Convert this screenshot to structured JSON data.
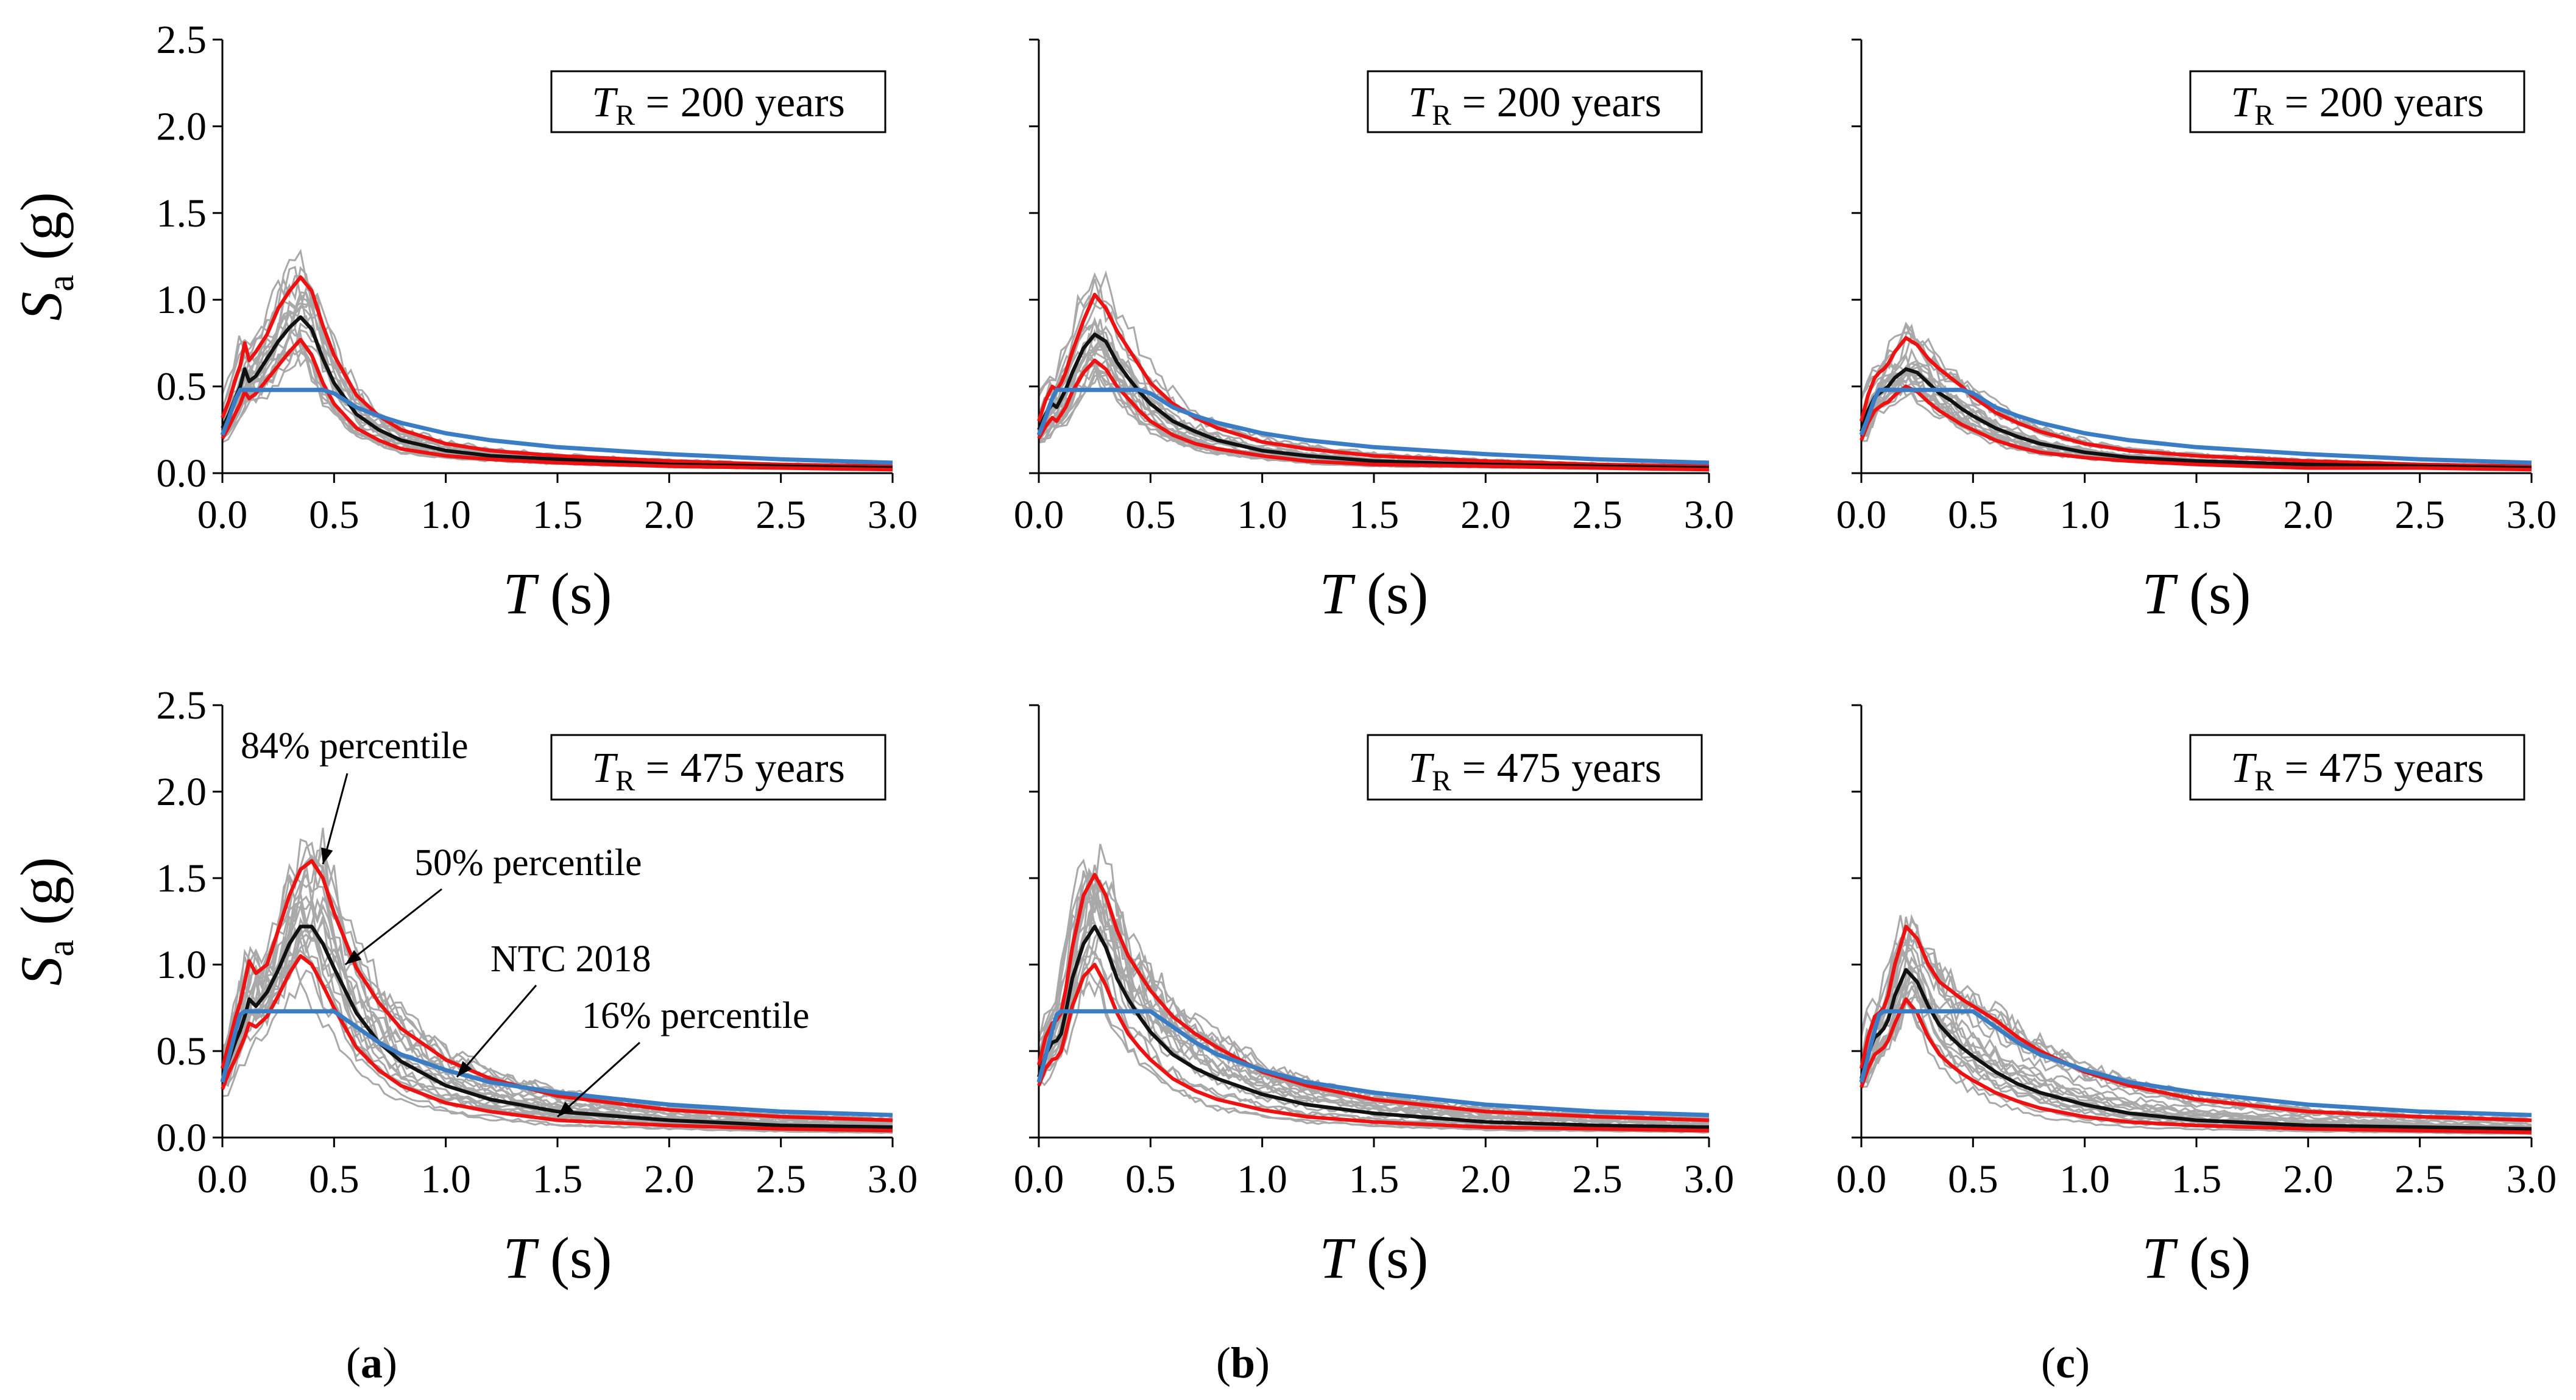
{
  "chart_data": [
    {
      "type": "line",
      "panel": "top-a",
      "legend": {
        "T": "T",
        "sub": "R",
        "text": " = 200 years"
      },
      "xticks": [
        "0.0",
        "0.5",
        "1.0",
        "1.5",
        "2.0",
        "2.5",
        "3.0"
      ],
      "yticks": [
        "0.0",
        "0.5",
        "1.0",
        "1.5",
        "2.0",
        "2.5"
      ],
      "xlim": [
        0,
        3
      ],
      "ylim": [
        0,
        2.5
      ],
      "xlabel": {
        "main": "T",
        "unit": " (s)"
      },
      "ylabel": {
        "main": "S",
        "sub": "a",
        "unit": " (g)"
      },
      "x": [
        0,
        0.03,
        0.06,
        0.08,
        0.1,
        0.12,
        0.15,
        0.2,
        0.25,
        0.3,
        0.35,
        0.4,
        0.45,
        0.5,
        0.6,
        0.7,
        0.8,
        1.0,
        1.2,
        1.5,
        2.0,
        2.5,
        3.0
      ],
      "series": [
        {
          "name": "84% percentile",
          "color": "#ee1111",
          "values": [
            0.32,
            0.42,
            0.55,
            0.62,
            0.75,
            0.65,
            0.7,
            0.8,
            0.95,
            1.05,
            1.13,
            1.05,
            0.85,
            0.68,
            0.45,
            0.33,
            0.25,
            0.17,
            0.13,
            0.1,
            0.07,
            0.05,
            0.04
          ]
        },
        {
          "name": "50% percentile",
          "color": "#111111",
          "values": [
            0.26,
            0.34,
            0.44,
            0.5,
            0.6,
            0.53,
            0.56,
            0.66,
            0.76,
            0.84,
            0.9,
            0.83,
            0.66,
            0.52,
            0.34,
            0.25,
            0.19,
            0.13,
            0.1,
            0.08,
            0.05,
            0.04,
            0.03
          ]
        },
        {
          "name": "16% percentile",
          "color": "#ee1111",
          "values": [
            0.2,
            0.27,
            0.35,
            0.4,
            0.47,
            0.43,
            0.46,
            0.54,
            0.62,
            0.7,
            0.77,
            0.68,
            0.52,
            0.4,
            0.26,
            0.19,
            0.14,
            0.1,
            0.08,
            0.06,
            0.04,
            0.03,
            0.02
          ]
        },
        {
          "name": "NTC 2018",
          "color": "#3b7dc4",
          "values": [
            0.22,
            0.32,
            0.43,
            0.48,
            0.48,
            0.48,
            0.48,
            0.48,
            0.48,
            0.48,
            0.48,
            0.48,
            0.48,
            0.46,
            0.38,
            0.33,
            0.29,
            0.23,
            0.19,
            0.15,
            0.11,
            0.08,
            0.06
          ]
        }
      ]
    },
    {
      "type": "line",
      "panel": "top-b",
      "legend": {
        "T": "T",
        "sub": "R",
        "text": " = 200 years"
      },
      "xticks": [
        "0.0",
        "0.5",
        "1.0",
        "1.5",
        "2.0",
        "2.5",
        "3.0"
      ],
      "xlim": [
        0,
        3
      ],
      "ylim": [
        0,
        2.5
      ],
      "xlabel": {
        "main": "T",
        "unit": " (s)"
      },
      "x": [
        0,
        0.03,
        0.06,
        0.08,
        0.1,
        0.12,
        0.15,
        0.2,
        0.25,
        0.3,
        0.35,
        0.4,
        0.45,
        0.5,
        0.6,
        0.7,
        0.8,
        1.0,
        1.2,
        1.5,
        2.0,
        2.5,
        3.0
      ],
      "series": [
        {
          "name": "84% percentile",
          "color": "#ee1111",
          "values": [
            0.3,
            0.42,
            0.5,
            0.48,
            0.52,
            0.58,
            0.7,
            0.88,
            1.03,
            0.95,
            0.82,
            0.72,
            0.62,
            0.52,
            0.4,
            0.32,
            0.26,
            0.18,
            0.14,
            0.1,
            0.07,
            0.05,
            0.04
          ]
        },
        {
          "name": "50% percentile",
          "color": "#111111",
          "values": [
            0.25,
            0.34,
            0.4,
            0.38,
            0.43,
            0.48,
            0.58,
            0.72,
            0.8,
            0.76,
            0.64,
            0.55,
            0.47,
            0.4,
            0.3,
            0.24,
            0.19,
            0.13,
            0.1,
            0.07,
            0.05,
            0.04,
            0.03
          ]
        },
        {
          "name": "16% percentile",
          "color": "#ee1111",
          "values": [
            0.2,
            0.27,
            0.32,
            0.3,
            0.34,
            0.38,
            0.47,
            0.58,
            0.65,
            0.6,
            0.5,
            0.43,
            0.36,
            0.3,
            0.22,
            0.17,
            0.14,
            0.1,
            0.07,
            0.05,
            0.04,
            0.03,
            0.02
          ]
        },
        {
          "name": "NTC 2018",
          "color": "#3b7dc4",
          "values": [
            0.22,
            0.32,
            0.43,
            0.48,
            0.48,
            0.48,
            0.48,
            0.48,
            0.48,
            0.48,
            0.48,
            0.48,
            0.48,
            0.46,
            0.38,
            0.33,
            0.29,
            0.23,
            0.19,
            0.15,
            0.11,
            0.08,
            0.06
          ]
        }
      ]
    },
    {
      "type": "line",
      "panel": "top-c",
      "legend": {
        "T": "T",
        "sub": "R",
        "text": " = 200 years"
      },
      "xticks": [
        "0.0",
        "0.5",
        "1.0",
        "1.5",
        "2.0",
        "2.5",
        "3.0"
      ],
      "xlim": [
        0,
        3
      ],
      "ylim": [
        0,
        2.5
      ],
      "xlabel": {
        "main": "T",
        "unit": " (s)"
      },
      "x": [
        0,
        0.03,
        0.06,
        0.08,
        0.1,
        0.12,
        0.15,
        0.2,
        0.25,
        0.3,
        0.35,
        0.4,
        0.45,
        0.5,
        0.6,
        0.7,
        0.8,
        1.0,
        1.2,
        1.5,
        2.0,
        2.5,
        3.0
      ],
      "series": [
        {
          "name": "84% percentile",
          "color": "#ee1111",
          "values": [
            0.3,
            0.45,
            0.55,
            0.58,
            0.6,
            0.63,
            0.7,
            0.78,
            0.74,
            0.66,
            0.6,
            0.55,
            0.5,
            0.44,
            0.35,
            0.29,
            0.24,
            0.17,
            0.13,
            0.1,
            0.07,
            0.05,
            0.04
          ]
        },
        {
          "name": "50% percentile",
          "color": "#111111",
          "values": [
            0.24,
            0.36,
            0.44,
            0.46,
            0.48,
            0.5,
            0.55,
            0.6,
            0.58,
            0.52,
            0.46,
            0.42,
            0.37,
            0.33,
            0.26,
            0.21,
            0.17,
            0.12,
            0.09,
            0.07,
            0.05,
            0.04,
            0.03
          ]
        },
        {
          "name": "16% percentile",
          "color": "#ee1111",
          "values": [
            0.19,
            0.29,
            0.36,
            0.38,
            0.4,
            0.41,
            0.45,
            0.5,
            0.47,
            0.41,
            0.36,
            0.32,
            0.28,
            0.25,
            0.19,
            0.15,
            0.12,
            0.09,
            0.07,
            0.05,
            0.03,
            0.03,
            0.02
          ]
        },
        {
          "name": "NTC 2018",
          "color": "#3b7dc4",
          "values": [
            0.22,
            0.32,
            0.43,
            0.48,
            0.48,
            0.48,
            0.48,
            0.48,
            0.48,
            0.48,
            0.48,
            0.48,
            0.48,
            0.46,
            0.38,
            0.33,
            0.29,
            0.23,
            0.19,
            0.15,
            0.11,
            0.08,
            0.06
          ]
        }
      ]
    },
    {
      "type": "line",
      "panel": "bottom-a",
      "legend": {
        "T": "T",
        "sub": "R",
        "text": " = 475 years"
      },
      "xticks": [
        "0.0",
        "0.5",
        "1.0",
        "1.5",
        "2.0",
        "2.5",
        "3.0"
      ],
      "yticks": [
        "0.0",
        "0.5",
        "1.0",
        "1.5",
        "2.0",
        "2.5"
      ],
      "xlim": [
        0,
        3
      ],
      "ylim": [
        0,
        2.5
      ],
      "xlabel": {
        "main": "T",
        "unit": " (s)"
      },
      "ylabel": {
        "main": "S",
        "sub": "a",
        "unit": " (g)"
      },
      "annotations": [
        "84% percentile",
        "50% percentile",
        "NTC 2018",
        "16% percentile"
      ],
      "x": [
        0,
        0.03,
        0.06,
        0.08,
        0.1,
        0.12,
        0.15,
        0.2,
        0.25,
        0.3,
        0.35,
        0.4,
        0.45,
        0.5,
        0.6,
        0.7,
        0.8,
        1.0,
        1.2,
        1.5,
        2.0,
        2.5,
        3.0
      ],
      "series": [
        {
          "name": "84% percentile",
          "color": "#ee1111",
          "values": [
            0.4,
            0.55,
            0.7,
            0.78,
            0.9,
            1.02,
            0.95,
            1.0,
            1.2,
            1.4,
            1.55,
            1.6,
            1.5,
            1.3,
            0.98,
            0.78,
            0.63,
            0.45,
            0.34,
            0.24,
            0.16,
            0.12,
            0.1
          ]
        },
        {
          "name": "50% percentile",
          "color": "#111111",
          "values": [
            0.33,
            0.45,
            0.56,
            0.62,
            0.7,
            0.8,
            0.76,
            0.84,
            0.97,
            1.12,
            1.22,
            1.22,
            1.12,
            0.98,
            0.72,
            0.55,
            0.44,
            0.3,
            0.22,
            0.15,
            0.1,
            0.07,
            0.06
          ]
        },
        {
          "name": "16% percentile",
          "color": "#ee1111",
          "values": [
            0.28,
            0.38,
            0.46,
            0.52,
            0.58,
            0.66,
            0.64,
            0.7,
            0.82,
            0.95,
            1.05,
            1.0,
            0.88,
            0.75,
            0.52,
            0.39,
            0.3,
            0.2,
            0.15,
            0.1,
            0.07,
            0.05,
            0.04
          ]
        },
        {
          "name": "NTC 2018",
          "color": "#3b7dc4",
          "values": [
            0.32,
            0.47,
            0.62,
            0.71,
            0.73,
            0.73,
            0.73,
            0.73,
            0.73,
            0.73,
            0.73,
            0.73,
            0.73,
            0.73,
            0.64,
            0.55,
            0.48,
            0.39,
            0.32,
            0.26,
            0.19,
            0.15,
            0.13
          ]
        }
      ]
    },
    {
      "type": "line",
      "panel": "bottom-b",
      "legend": {
        "T": "T",
        "sub": "R",
        "text": " = 475 years"
      },
      "xticks": [
        "0.0",
        "0.5",
        "1.0",
        "1.5",
        "2.0",
        "2.5",
        "3.0"
      ],
      "xlim": [
        0,
        3
      ],
      "ylim": [
        0,
        2.5
      ],
      "xlabel": {
        "main": "T",
        "unit": " (s)"
      },
      "x": [
        0,
        0.03,
        0.06,
        0.08,
        0.1,
        0.12,
        0.15,
        0.2,
        0.25,
        0.3,
        0.35,
        0.4,
        0.45,
        0.5,
        0.6,
        0.7,
        0.8,
        1.0,
        1.2,
        1.5,
        2.0,
        2.5,
        3.0
      ],
      "series": [
        {
          "name": "84% percentile",
          "color": "#ee1111",
          "values": [
            0.42,
            0.58,
            0.66,
            0.68,
            0.72,
            0.85,
            1.1,
            1.4,
            1.52,
            1.4,
            1.2,
            1.05,
            0.95,
            0.85,
            0.7,
            0.6,
            0.52,
            0.38,
            0.3,
            0.22,
            0.15,
            0.12,
            0.1
          ]
        },
        {
          "name": "50% percentile",
          "color": "#111111",
          "values": [
            0.35,
            0.48,
            0.55,
            0.56,
            0.6,
            0.72,
            0.92,
            1.12,
            1.22,
            1.1,
            0.92,
            0.8,
            0.7,
            0.61,
            0.48,
            0.4,
            0.34,
            0.25,
            0.19,
            0.14,
            0.09,
            0.07,
            0.06
          ]
        },
        {
          "name": "16% percentile",
          "color": "#ee1111",
          "values": [
            0.3,
            0.4,
            0.45,
            0.46,
            0.5,
            0.6,
            0.76,
            0.93,
            1.0,
            0.88,
            0.72,
            0.6,
            0.52,
            0.45,
            0.34,
            0.27,
            0.22,
            0.16,
            0.12,
            0.09,
            0.06,
            0.05,
            0.04
          ]
        },
        {
          "name": "NTC 2018",
          "color": "#3b7dc4",
          "values": [
            0.32,
            0.47,
            0.62,
            0.71,
            0.73,
            0.73,
            0.73,
            0.73,
            0.73,
            0.73,
            0.73,
            0.73,
            0.73,
            0.73,
            0.64,
            0.55,
            0.48,
            0.39,
            0.32,
            0.26,
            0.19,
            0.15,
            0.13
          ]
        }
      ]
    },
    {
      "type": "line",
      "panel": "bottom-c",
      "legend": {
        "T": "T",
        "sub": "R",
        "text": " = 475 years"
      },
      "xticks": [
        "0.0",
        "0.5",
        "1.0",
        "1.5",
        "2.0",
        "2.5",
        "3.0"
      ],
      "xlim": [
        0,
        3
      ],
      "ylim": [
        0,
        2.5
      ],
      "xlabel": {
        "main": "T",
        "unit": " (s)"
      },
      "x": [
        0,
        0.03,
        0.06,
        0.08,
        0.1,
        0.12,
        0.15,
        0.2,
        0.25,
        0.3,
        0.35,
        0.4,
        0.45,
        0.5,
        0.6,
        0.7,
        0.8,
        1.0,
        1.2,
        1.5,
        2.0,
        2.5,
        3.0
      ],
      "series": [
        {
          "name": "84% percentile",
          "color": "#ee1111",
          "values": [
            0.4,
            0.58,
            0.7,
            0.72,
            0.75,
            0.82,
            1.0,
            1.22,
            1.15,
            1.0,
            0.9,
            0.85,
            0.8,
            0.76,
            0.68,
            0.58,
            0.5,
            0.38,
            0.3,
            0.22,
            0.15,
            0.12,
            0.1
          ]
        },
        {
          "name": "50% percentile",
          "color": "#111111",
          "values": [
            0.34,
            0.48,
            0.58,
            0.6,
            0.63,
            0.68,
            0.82,
            0.97,
            0.9,
            0.76,
            0.65,
            0.58,
            0.52,
            0.47,
            0.38,
            0.31,
            0.26,
            0.19,
            0.14,
            0.1,
            0.07,
            0.06,
            0.05
          ]
        },
        {
          "name": "16% percentile",
          "color": "#ee1111",
          "values": [
            0.29,
            0.4,
            0.48,
            0.5,
            0.52,
            0.56,
            0.66,
            0.8,
            0.72,
            0.58,
            0.48,
            0.42,
            0.37,
            0.33,
            0.26,
            0.21,
            0.17,
            0.12,
            0.09,
            0.07,
            0.05,
            0.04,
            0.03
          ]
        },
        {
          "name": "NTC 2018",
          "color": "#3b7dc4",
          "values": [
            0.32,
            0.47,
            0.62,
            0.71,
            0.73,
            0.73,
            0.73,
            0.73,
            0.73,
            0.73,
            0.73,
            0.73,
            0.73,
            0.73,
            0.64,
            0.55,
            0.48,
            0.39,
            0.32,
            0.26,
            0.19,
            0.15,
            0.13
          ]
        }
      ]
    }
  ],
  "columns": [
    {
      "open": "(",
      "letter": "a",
      "close": ")"
    },
    {
      "open": "(",
      "letter": "b",
      "close": ")"
    },
    {
      "open": "(",
      "letter": "c",
      "close": ")"
    }
  ],
  "colors": {
    "records": "#a9a9a9",
    "p84": "#ee1111",
    "p50": "#111111",
    "p16": "#ee1111",
    "ntc": "#3b7dc4",
    "axis": "#000000"
  }
}
